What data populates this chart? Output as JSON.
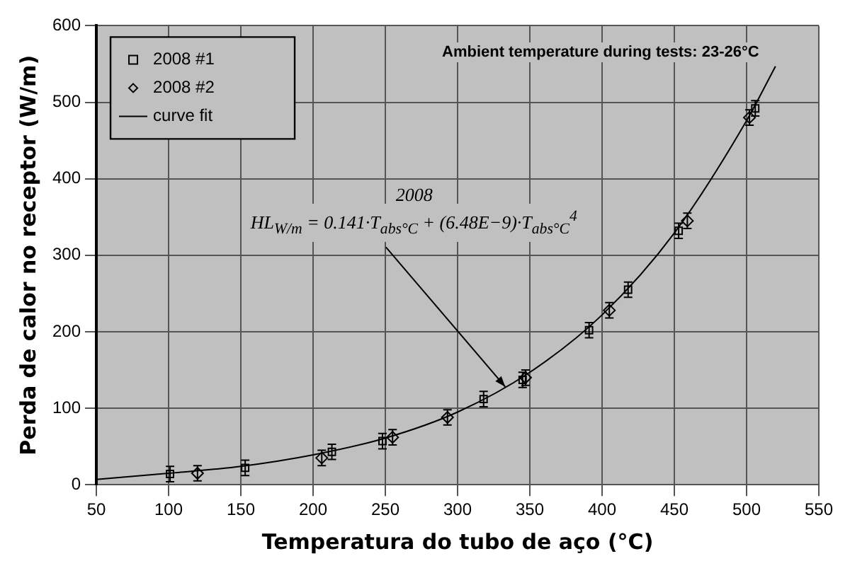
{
  "chart_data": {
    "type": "scatter",
    "xlabel": "Temperatura do tubo de aço (°C)",
    "ylabel": "Perda de calor no receptor (W/m)",
    "xlim": [
      50,
      550
    ],
    "xticks": [
      50,
      100,
      150,
      200,
      250,
      300,
      350,
      400,
      450,
      500,
      550
    ],
    "ylim": [
      0,
      600
    ],
    "yticks": [
      0,
      100,
      200,
      300,
      400,
      500,
      600
    ],
    "grid": true,
    "legend": "top left",
    "series": [
      {
        "name": "2008 #1",
        "type": "scatter",
        "marker": "square",
        "color": "#000000",
        "x": [
          101,
          153,
          213,
          248,
          318,
          345,
          391,
          418,
          453,
          506
        ],
        "values": [
          14,
          22,
          43,
          57,
          112,
          137,
          202,
          255,
          332,
          492
        ],
        "errors": [
          10,
          10,
          10,
          10,
          10,
          10,
          10,
          10,
          10,
          10
        ]
      },
      {
        "name": "2008 #2",
        "type": "scatter",
        "marker": "diamond",
        "color": "#000000",
        "x": [
          120,
          206,
          255,
          293,
          347,
          405,
          459,
          502
        ],
        "values": [
          15,
          35,
          62,
          88,
          140,
          228,
          345,
          480
        ],
        "errors": [
          10,
          10,
          10,
          10,
          10,
          10,
          10,
          10
        ]
      },
      {
        "name": "curve fit",
        "type": "line",
        "marker": "none",
        "color": "#000000",
        "x": [
          50,
          100,
          150,
          200,
          250,
          300,
          350,
          400,
          450,
          500,
          520
        ],
        "values": [
          7,
          15,
          24,
          39,
          61,
          95,
          147,
          222,
          329,
          476,
          547
        ]
      }
    ],
    "annotations": [
      "Ambient temperature during tests: 23-26°C",
      "2008",
      {
        "text": "HL$_{W/m}$ = 0.141·T$_{abs°C}$ + (6.48E−9)·T$_{abs°C}$$^{4}$",
        "x": 333,
        "y": 128
      }
    ]
  }
}
